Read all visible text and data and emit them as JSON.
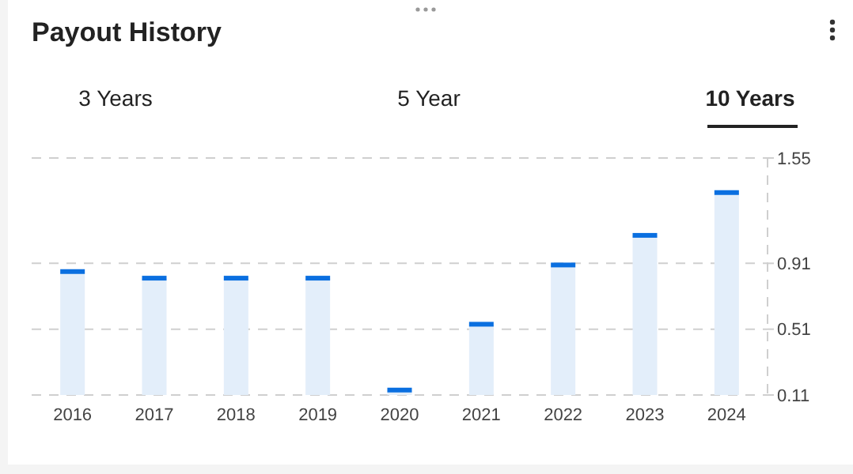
{
  "chart_data": {
    "type": "bar",
    "title": "Payout History",
    "annotations": [
      "3 Years",
      "5 Year",
      "10 Years"
    ],
    "categories": [
      "2016",
      "2017",
      "2018",
      "2019",
      "2020",
      "2021",
      "2022",
      "2023",
      "2024"
    ],
    "values": [
      0.86,
      0.82,
      0.82,
      0.82,
      0.14,
      0.54,
      0.9,
      1.08,
      1.34
    ],
    "color": "#e3eefa",
    "ylim": [
      0.11,
      1.55
    ],
    "yticks": [
      0.11,
      0.51,
      0.91,
      1.55
    ],
    "grid": "y"
  }
}
